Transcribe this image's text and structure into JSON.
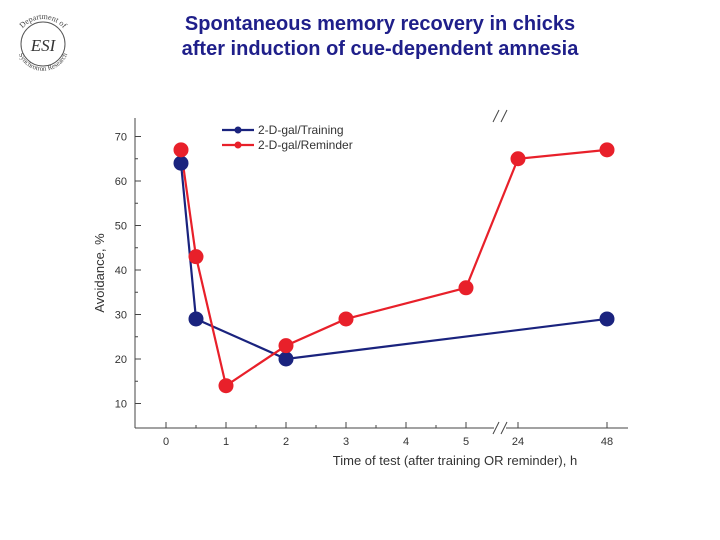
{
  "slide": {
    "title_line1": "Spontaneous memory recovery in chicks",
    "title_line2": "after induction of cue-dependent amnesia"
  },
  "logo": {
    "top_text": "Department of",
    "center_text": "ESI",
    "bottom_text": "Synchrotron Research"
  },
  "colors": {
    "training": "#1a237e",
    "reminder": "#e8202a",
    "title": "#1f1f8a"
  },
  "chart_data": {
    "type": "line",
    "title": "",
    "xlabel": "Time of test (after training OR reminder), h",
    "ylabel": "Avoidance, %",
    "x_tick_labels": [
      "0",
      "1",
      "2",
      "3",
      "4",
      "5",
      "24",
      "48"
    ],
    "y_ticks": [
      10,
      20,
      30,
      40,
      50,
      60,
      70
    ],
    "ylim": [
      5,
      72
    ],
    "axis_break": "between 5 and 24 h",
    "legend_position": "top-left",
    "grid": false,
    "series": [
      {
        "name": "2-D-gal/Training",
        "color": "#1a237e",
        "points": [
          {
            "x": "0.25",
            "y": 64
          },
          {
            "x": "0.5",
            "y": 29
          },
          {
            "x": "2",
            "y": 20
          },
          {
            "x": "48",
            "y": 29
          }
        ]
      },
      {
        "name": "2-D-gal/Reminder",
        "color": "#e8202a",
        "points": [
          {
            "x": "0.25",
            "y": 67
          },
          {
            "x": "0.5",
            "y": 43
          },
          {
            "x": "1",
            "y": 14
          },
          {
            "x": "2",
            "y": 23
          },
          {
            "x": "3",
            "y": 29
          },
          {
            "x": "5",
            "y": 36
          },
          {
            "x": "24",
            "y": 65
          },
          {
            "x": "48",
            "y": 67
          }
        ]
      }
    ]
  }
}
